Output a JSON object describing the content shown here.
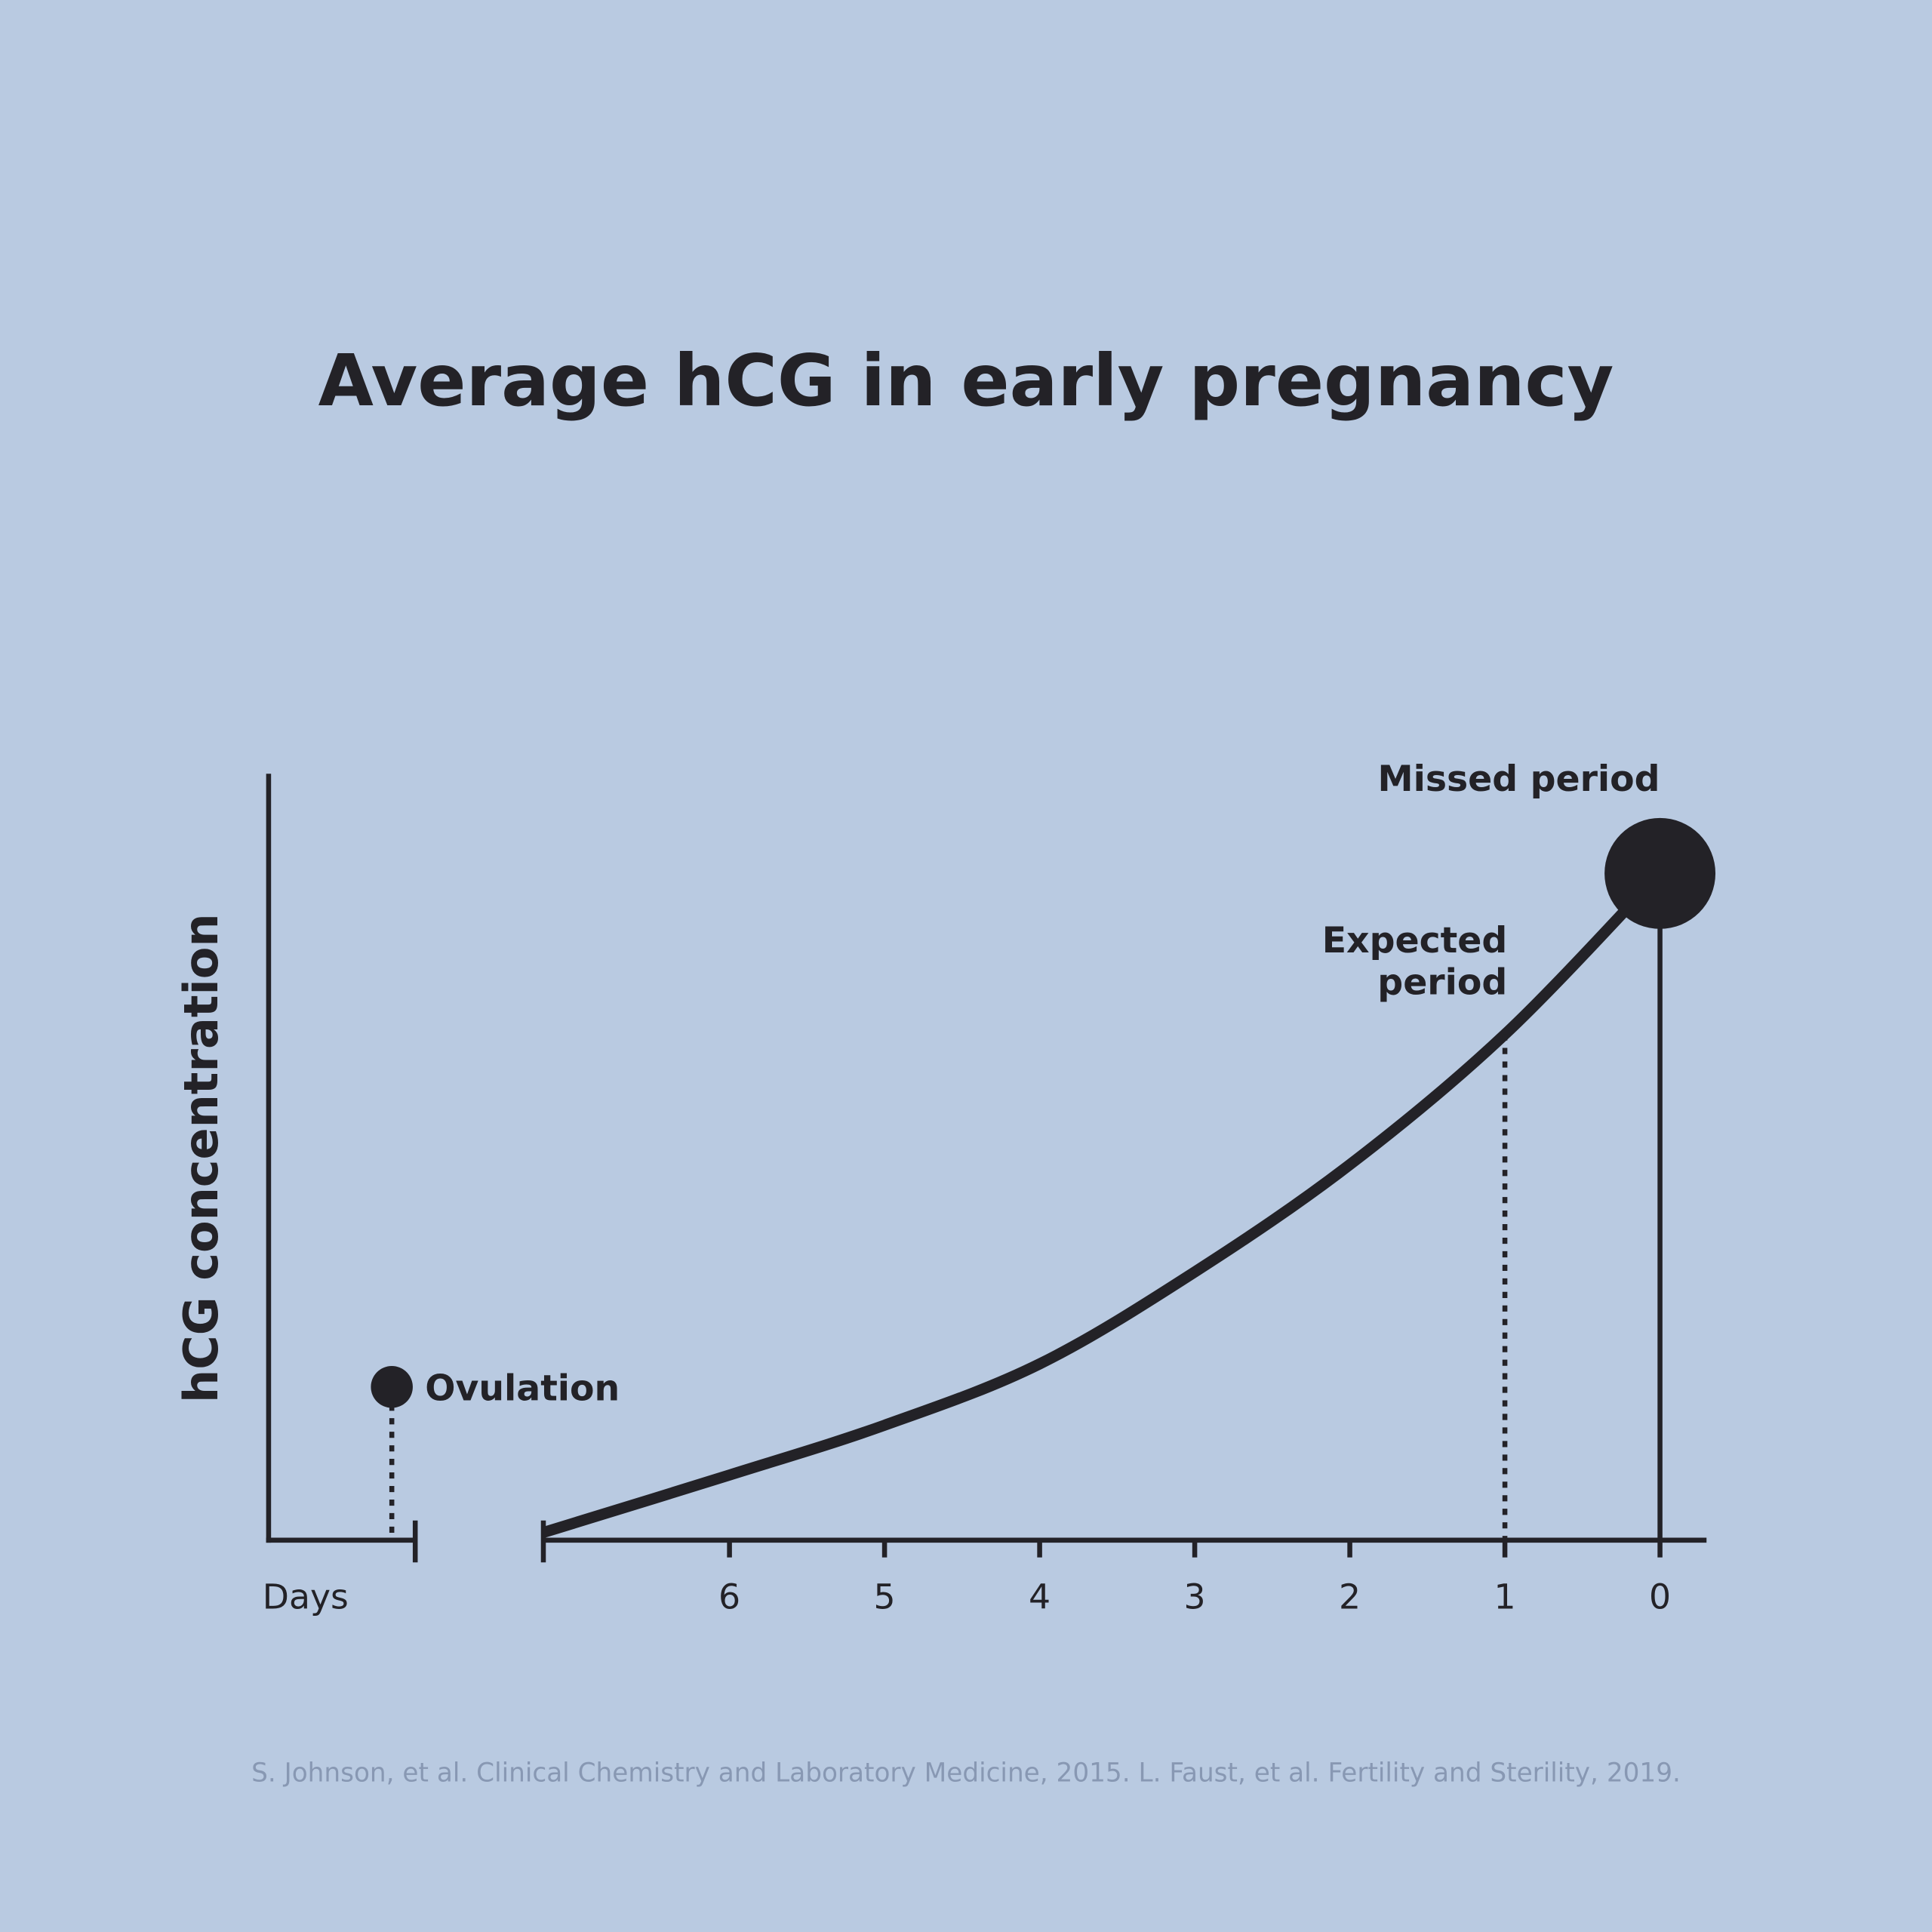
{
  "chart_data": {
    "type": "line",
    "title": "Average hCG in early pregnancy",
    "xlabel": "Days",
    "ylabel": "hCG concentration",
    "x": [
      7.2,
      6,
      5,
      4,
      3,
      2,
      1,
      0
    ],
    "values": [
      1,
      8.5,
      15,
      23,
      35,
      49,
      66,
      87
    ],
    "color": "#232227",
    "xlim": [
      7.2,
      -0.3
    ],
    "ylim": [
      0,
      100
    ],
    "xticks": [
      6,
      5,
      4,
      3,
      2,
      1,
      0
    ],
    "annotations": [
      {
        "label": "Ovulation",
        "y": 20
      },
      {
        "label": "Expected period",
        "x": 1
      },
      {
        "label": "Missed period",
        "x": 0
      }
    ],
    "source": "S. Johnson, et al. Clinical Chemistry and Laboratory Medicine, 2015. L. Faust, et al. Fertility and Sterility, 2019."
  }
}
